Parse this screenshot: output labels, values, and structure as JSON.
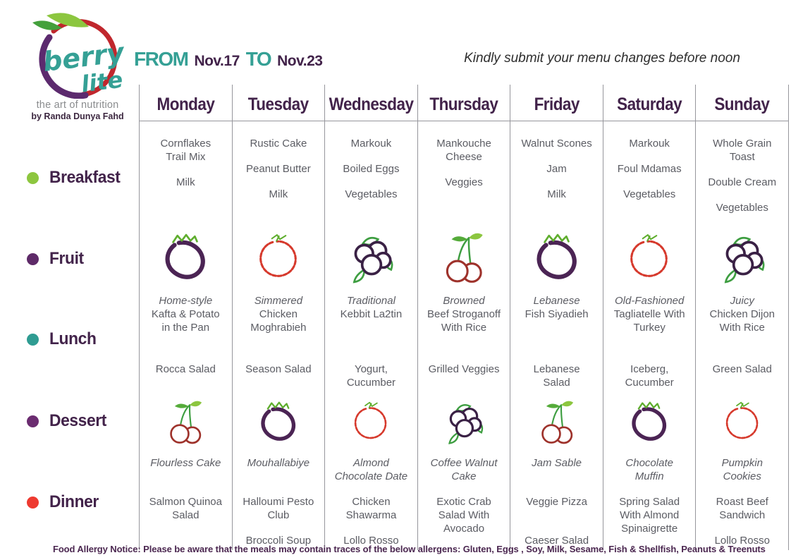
{
  "brand": {
    "word1": "berry",
    "word2": "lite",
    "tagline": "the art of nutrition",
    "byline": "by Randa Dunya Fahd"
  },
  "period": {
    "from_label": "FROM",
    "from_date": "Nov.17",
    "to_label": "TO",
    "to_date": "Nov.23"
  },
  "note": "Kindly submit your menu changes before noon",
  "meal_rows": [
    {
      "label": "Breakfast",
      "dot_color": "#8dc63f"
    },
    {
      "label": "Fruit",
      "dot_color": "#5e2a68"
    },
    {
      "label": "Lunch",
      "dot_color": "#2f9c92"
    },
    {
      "label": "Dessert",
      "dot_color": "#6b2c70"
    },
    {
      "label": "Dinner",
      "dot_color": "#ee3a30"
    }
  ],
  "days": [
    {
      "name": "Monday",
      "breakfast": [
        [
          "Cornflakes",
          "Trail Mix"
        ],
        [
          "Milk"
        ]
      ],
      "fruit_icon": "strawberry-purple",
      "lunch_tag": "Home-style",
      "lunch_lines": [
        "Kafta & Potato",
        "in the Pan"
      ],
      "side": [
        "Rocca Salad"
      ],
      "dessert_icon": "cherries",
      "dessert_lines": [
        "Flourless Cake"
      ],
      "dinner": [
        [
          "Salmon Quinoa",
          "Salad"
        ]
      ]
    },
    {
      "name": "Tuesday",
      "breakfast": [
        [
          "Rustic Cake"
        ],
        [
          "Peanut Butter"
        ],
        [
          "Milk"
        ]
      ],
      "fruit_icon": "strawberry-red",
      "lunch_tag": "Simmered",
      "lunch_lines": [
        "Chicken",
        "Moghrabieh"
      ],
      "side": [
        "Season Salad"
      ],
      "dessert_icon": "strawberry-purple",
      "dessert_lines": [
        "Mouhallabiye"
      ],
      "dinner": [
        [
          "Halloumi Pesto",
          "Club"
        ],
        [
          "Broccoli Soup"
        ]
      ]
    },
    {
      "name": "Wednesday",
      "breakfast": [
        [
          "Markouk"
        ],
        [
          "Boiled Eggs"
        ],
        [
          "Vegetables"
        ]
      ],
      "fruit_icon": "berries",
      "lunch_tag": "Traditional",
      "lunch_lines": [
        "Kebbit La2tin"
      ],
      "side": [
        "Yogurt,",
        "Cucumber"
      ],
      "dessert_icon": "strawberry-red",
      "dessert_lines": [
        "Almond",
        "Chocolate Date"
      ],
      "dinner": [
        [
          "Chicken",
          "Shawarma"
        ],
        [
          "Lollo Rosso"
        ]
      ]
    },
    {
      "name": "Thursday",
      "breakfast": [
        [
          "Mankouche",
          "Cheese"
        ],
        [
          "Veggies"
        ]
      ],
      "fruit_icon": "cherries",
      "lunch_tag": "Browned",
      "lunch_lines": [
        "Beef Stroganoff",
        "With Rice"
      ],
      "side": [
        "Grilled Veggies"
      ],
      "dessert_icon": "berries",
      "dessert_lines": [
        "Coffee Walnut",
        "Cake"
      ],
      "dinner": [
        [
          "Exotic Crab",
          "Salad With",
          "Avocado"
        ]
      ]
    },
    {
      "name": "Friday",
      "breakfast": [
        [
          "Walnut Scones"
        ],
        [
          "Jam"
        ],
        [
          "Milk"
        ]
      ],
      "fruit_icon": "strawberry-purple",
      "lunch_tag": "Lebanese",
      "lunch_lines": [
        "Fish Siyadieh"
      ],
      "side": [
        "Lebanese",
        "Salad"
      ],
      "dessert_icon": "cherries",
      "dessert_lines": [
        "Jam Sable"
      ],
      "dinner": [
        [
          "Veggie Pizza"
        ],
        [
          "Caeser Salad"
        ]
      ]
    },
    {
      "name": "Saturday",
      "breakfast": [
        [
          "Markouk"
        ],
        [
          "Foul Mdamas"
        ],
        [
          "Vegetables"
        ]
      ],
      "fruit_icon": "strawberry-red",
      "lunch_tag": "Old-Fashioned",
      "lunch_lines": [
        "Tagliatelle With",
        "Turkey"
      ],
      "side": [
        "Iceberg,",
        "Cucumber"
      ],
      "dessert_icon": "strawberry-purple",
      "dessert_lines": [
        "Chocolate",
        "Muffin"
      ],
      "dinner": [
        [
          "Spring Salad",
          "With Almond",
          "Spinaigrette"
        ]
      ]
    },
    {
      "name": "Sunday",
      "breakfast": [
        [
          "Whole Grain",
          "Toast"
        ],
        [
          "Double Cream"
        ],
        [
          "Vegetables"
        ]
      ],
      "fruit_icon": "berries",
      "lunch_tag": "Juicy",
      "lunch_lines": [
        "Chicken Dijon",
        "With Rice"
      ],
      "side": [
        "Green Salad"
      ],
      "dessert_icon": "strawberry-red",
      "dessert_lines": [
        "Pumpkin",
        "Cookies"
      ],
      "dinner": [
        [
          "Roast Beef",
          "Sandwich"
        ],
        [
          "Lollo Rosso"
        ]
      ]
    }
  ],
  "allergy_notice": "Food Allergy Notice: Please be aware that the meals may contain traces of the below allergens: Gluten, Eggs , Soy, Milk, Sesame, Fish & Shellfish, Peanuts & Treenuts",
  "colors": {
    "heading_purple": "#42234a",
    "body_text": "#5b5c63",
    "brand_teal": "#35a095",
    "grid_line": "#96969c",
    "logo_red": "#c0272d",
    "logo_purple": "#5c2a6e"
  }
}
